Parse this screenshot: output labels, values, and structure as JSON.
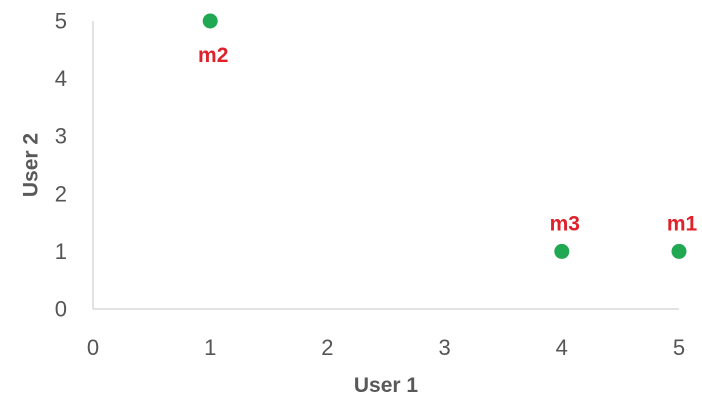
{
  "chart_data": {
    "type": "scatter",
    "xlabel": "User 1",
    "ylabel": "User 2",
    "xlim": [
      0,
      5
    ],
    "ylim": [
      0,
      5
    ],
    "x_ticks": [
      "0",
      "1",
      "2",
      "3",
      "4",
      "5"
    ],
    "y_ticks": [
      "0",
      "1",
      "2",
      "3",
      "4",
      "5"
    ],
    "grid": false,
    "colors": {
      "point": "#21a852",
      "label": "#e0202a",
      "axis": "#d9d9d9"
    },
    "points": [
      {
        "label": "m1",
        "x": 5,
        "y": 1
      },
      {
        "label": "m2",
        "x": 1,
        "y": 5
      },
      {
        "label": "m3",
        "x": 4,
        "y": 1
      }
    ]
  }
}
